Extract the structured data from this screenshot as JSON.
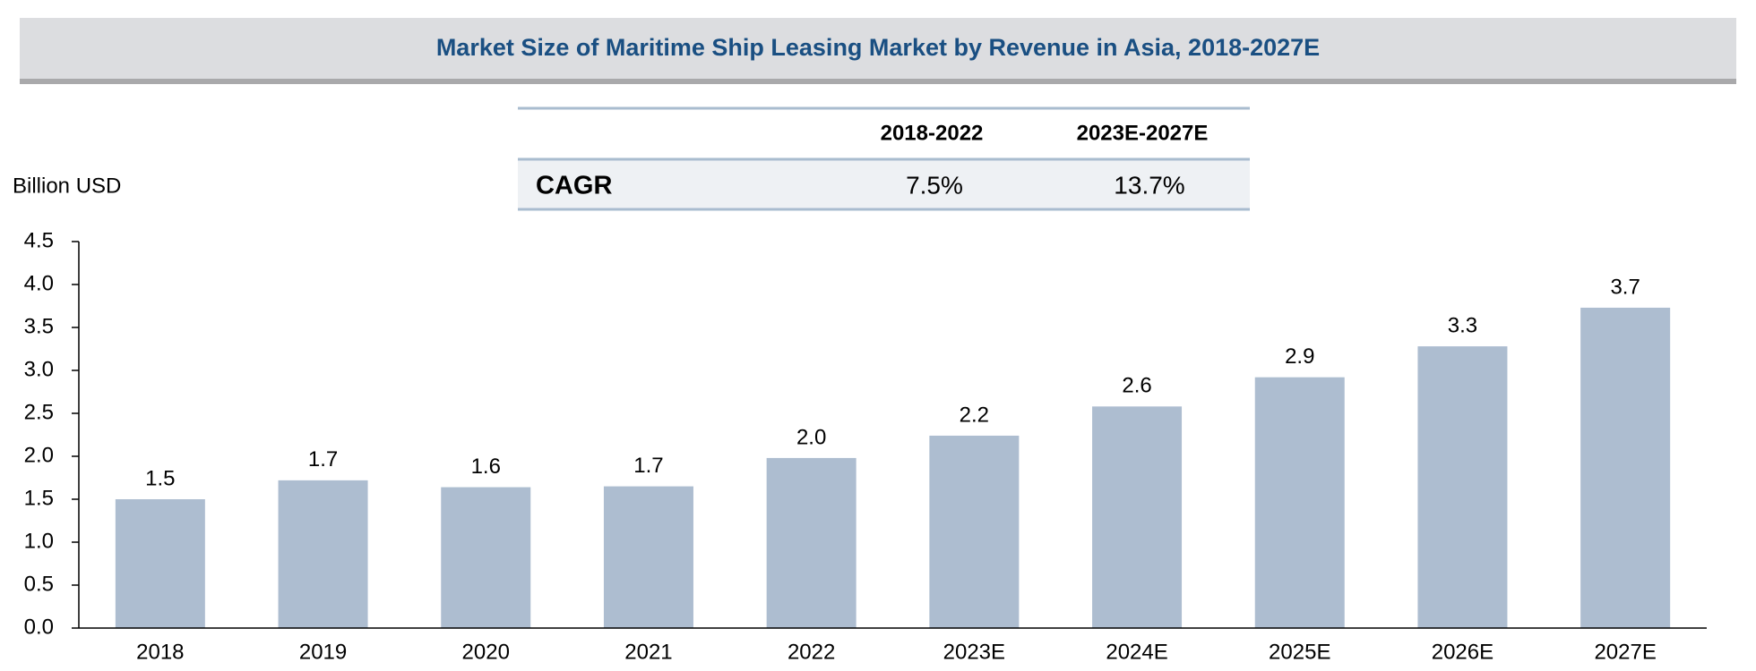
{
  "chart_data": {
    "type": "bar",
    "title": "Market Size of Maritime Ship Leasing Market by Revenue in Asia, 2018-2027E",
    "y_label": "Billion USD",
    "categories": [
      "2018",
      "2019",
      "2020",
      "2021",
      "2022",
      "2023E",
      "2024E",
      "2025E",
      "2026E",
      "2027E"
    ],
    "values": [
      1.5,
      1.72,
      1.64,
      1.65,
      1.98,
      2.24,
      2.58,
      2.92,
      3.28,
      3.73
    ],
    "value_labels": [
      "1.5",
      "1.7",
      "1.6",
      "1.7",
      "2.0",
      "2.2",
      "2.6",
      "2.9",
      "3.3",
      "3.7"
    ],
    "color": "#adbdd0",
    "ylim": [
      0,
      4.5
    ],
    "yticks": [
      {
        "value": 0,
        "label": "0.0"
      },
      0.5,
      {
        "value": 1,
        "label": "1.0"
      },
      1.5,
      {
        "value": 2,
        "label": "2.0"
      },
      2.5,
      {
        "value": 3,
        "label": "3.0"
      },
      3.5,
      {
        "value": 4,
        "label": "4.0"
      },
      4.5
    ],
    "grid": false,
    "cagr_table": {
      "columns": [
        "2018-2022",
        "2023E-2027E"
      ],
      "rows": [
        [
          "CAGR",
          "7.5%",
          "13.7%"
        ]
      ]
    }
  }
}
